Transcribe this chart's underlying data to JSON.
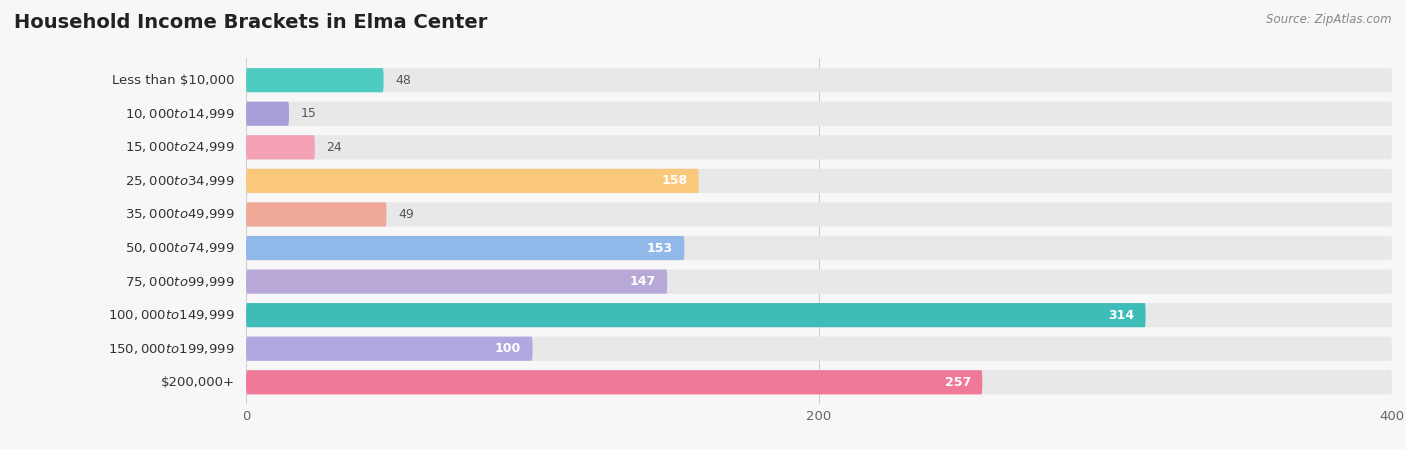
{
  "title": "Household Income Brackets in Elma Center",
  "source": "Source: ZipAtlas.com",
  "categories": [
    "Less than $10,000",
    "$10,000 to $14,999",
    "$15,000 to $24,999",
    "$25,000 to $34,999",
    "$35,000 to $49,999",
    "$50,000 to $74,999",
    "$75,000 to $99,999",
    "$100,000 to $149,999",
    "$150,000 to $199,999",
    "$200,000+"
  ],
  "values": [
    48,
    15,
    24,
    158,
    49,
    153,
    147,
    314,
    100,
    257
  ],
  "colors": [
    "#4ECCC2",
    "#A89FDA",
    "#F4A0B5",
    "#F9C87A",
    "#F0A898",
    "#90B8E8",
    "#B8A8D8",
    "#3DBCB8",
    "#B0A8E0",
    "#F07898"
  ],
  "xlim": [
    0,
    400
  ],
  "xticks": [
    0,
    200,
    400
  ],
  "bg_color": "#f7f7f7",
  "bar_bg_color": "#e8e8e8",
  "row_bg_colors": [
    "#f0f0f0",
    "#f7f7f7"
  ],
  "title_fontsize": 14,
  "label_fontsize": 9.5,
  "value_fontsize": 9,
  "value_threshold": 60
}
